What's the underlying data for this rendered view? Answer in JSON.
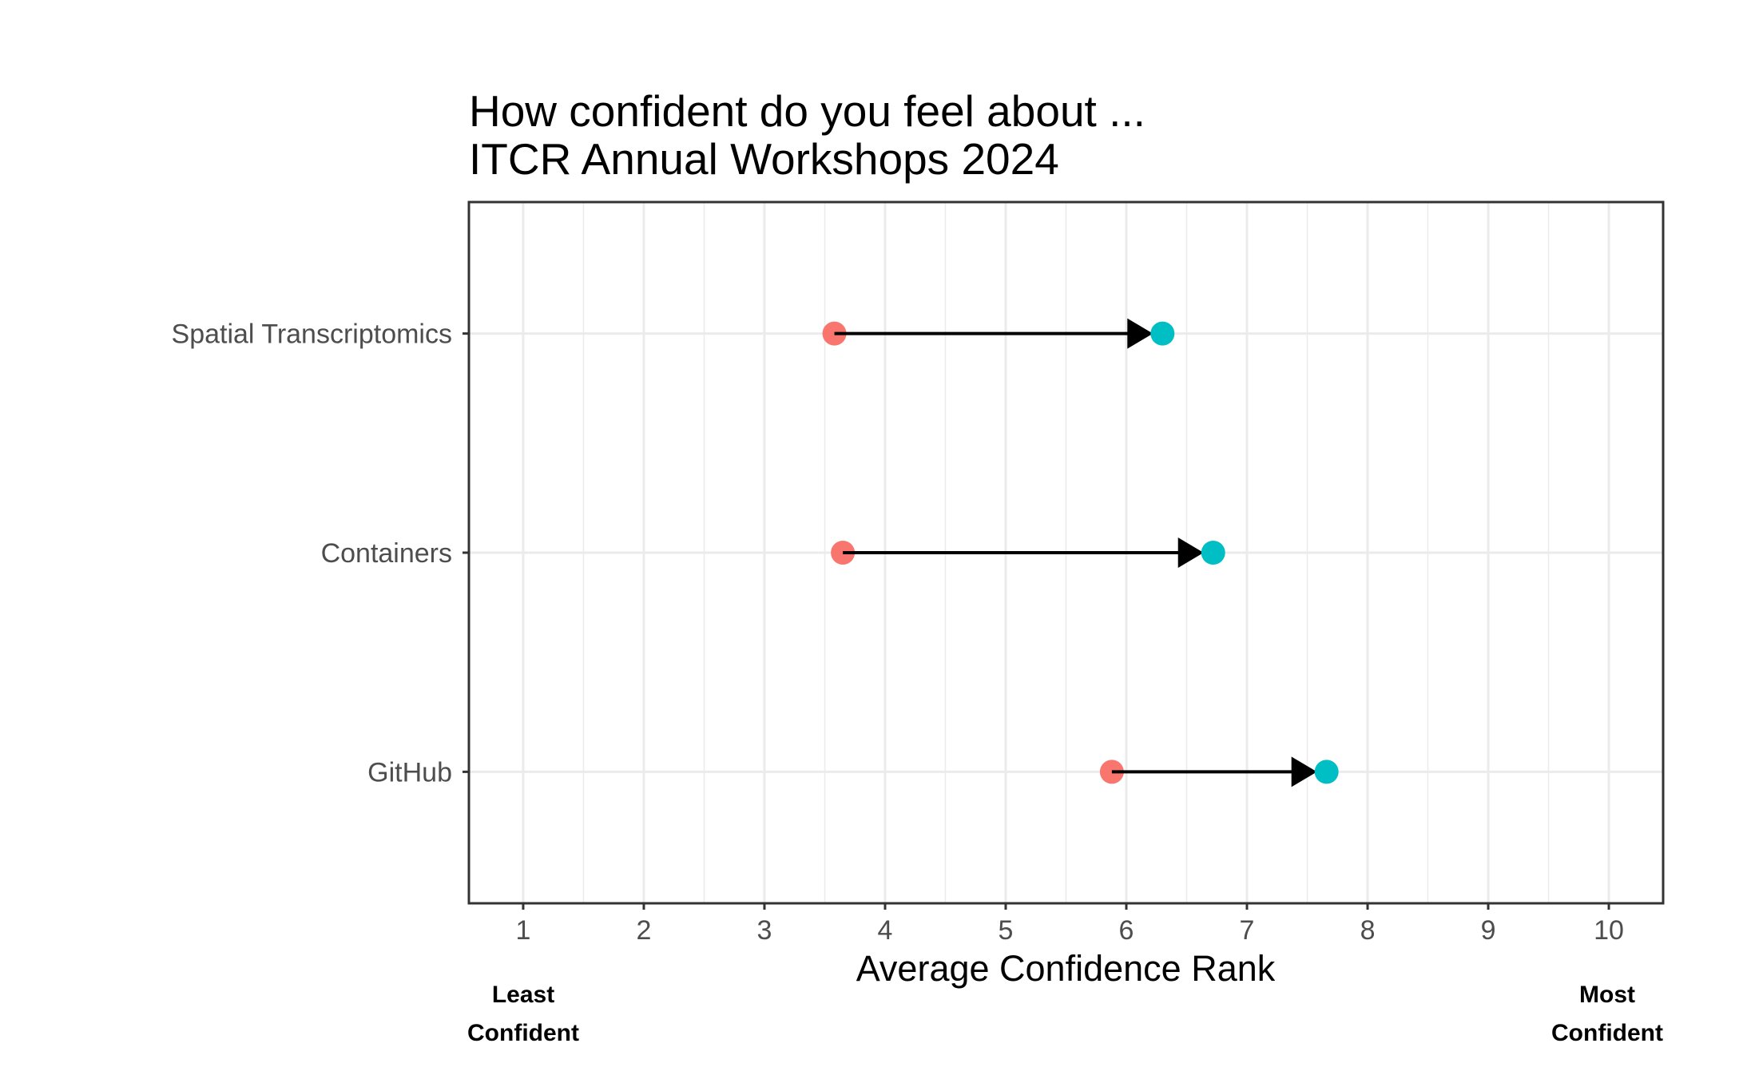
{
  "chart_data": {
    "type": "dumbbell",
    "title": "How confident do you feel about ...",
    "subtitle": "ITCR Annual Workshops 2024",
    "xlabel": "Average Confidence Rank",
    "ylabel": "",
    "xlim": [
      0.55,
      10.45
    ],
    "x_ticks": [
      "1",
      "2",
      "3",
      "4",
      "5",
      "6",
      "7",
      "8",
      "9",
      "10"
    ],
    "x_low_label": [
      "Least",
      "Confident"
    ],
    "x_high_label": [
      "Most",
      "Confident"
    ],
    "categories": [
      "Spatial Transcriptomics",
      "Containers",
      "GitHub"
    ],
    "pre_values": [
      3.58,
      3.65,
      5.88
    ],
    "post_values": [
      6.3,
      6.72,
      7.66
    ],
    "grid": true,
    "legend": "none",
    "colors": {
      "pre": "#F8766D",
      "post": "#00BFC4",
      "arrow": "#000000",
      "grid": "#EBEBEB",
      "panel_border": "#333333"
    }
  }
}
